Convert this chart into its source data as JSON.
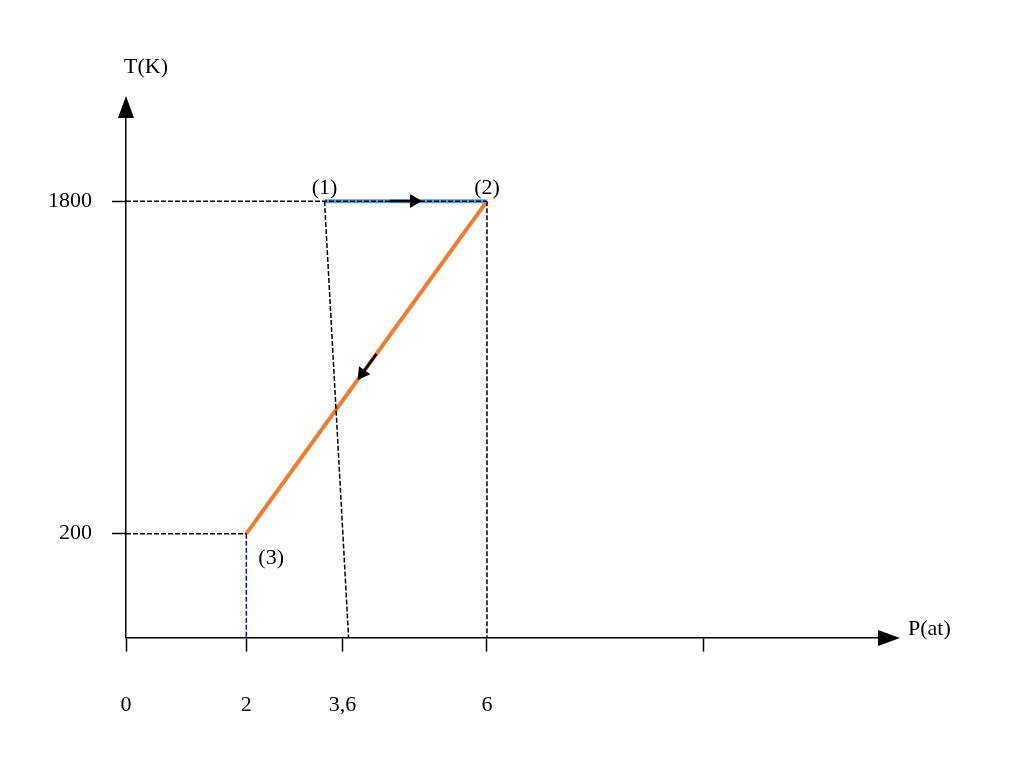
{
  "chart_data": {
    "type": "line",
    "xlabel": "P(at)",
    "ylabel": "T(K)",
    "xlim": [
      0,
      12.5
    ],
    "ylim": [
      -300,
      2200
    ],
    "xticks": [
      0,
      2,
      {
        "value": 3.6,
        "label": "3,6"
      },
      6,
      {
        "value": 9.6,
        "label": null
      }
    ],
    "yticks": [
      200,
      1800
    ],
    "grid": false,
    "legend": false,
    "marker": "none",
    "series": [
      {
        "type": "line",
        "color": "#5b9bd5",
        "x": [
          3.3,
          6
        ],
        "values": [
          1800,
          1800
        ],
        "line_style": "solid"
      },
      {
        "type": "line",
        "color": "#ed7d31",
        "x": [
          6,
          2
        ],
        "values": [
          1800,
          200
        ],
        "line_style": "solid"
      },
      {
        "type": "line",
        "color": "#000000",
        "x": [
          0,
          6
        ],
        "values": [
          1800,
          1800
        ],
        "line_style": "dashed"
      },
      {
        "type": "line",
        "color": "#000000",
        "x": [
          3.3,
          3.7
        ],
        "values": [
          1800,
          -300
        ],
        "line_style": "dashed"
      },
      {
        "type": "line",
        "color": "#000000",
        "x": [
          6,
          6
        ],
        "values": [
          1800,
          -300
        ],
        "line_style": "dashed"
      },
      {
        "type": "line",
        "color": "#000000",
        "x": [
          0,
          2
        ],
        "values": [
          200,
          200
        ],
        "line_style": "dashed"
      },
      {
        "type": "line",
        "color": "#0000ff",
        "x": [
          2,
          2
        ],
        "values": [
          200,
          -300
        ],
        "line_style": "dashed"
      }
    ],
    "annotations": [
      {
        "text": "(1)",
        "x": 3.3,
        "y": 1800
      },
      {
        "text": "(2)",
        "x": 6,
        "y": 1800
      },
      {
        "text": "(3)",
        "x": 2,
        "y": 200
      }
    ]
  }
}
